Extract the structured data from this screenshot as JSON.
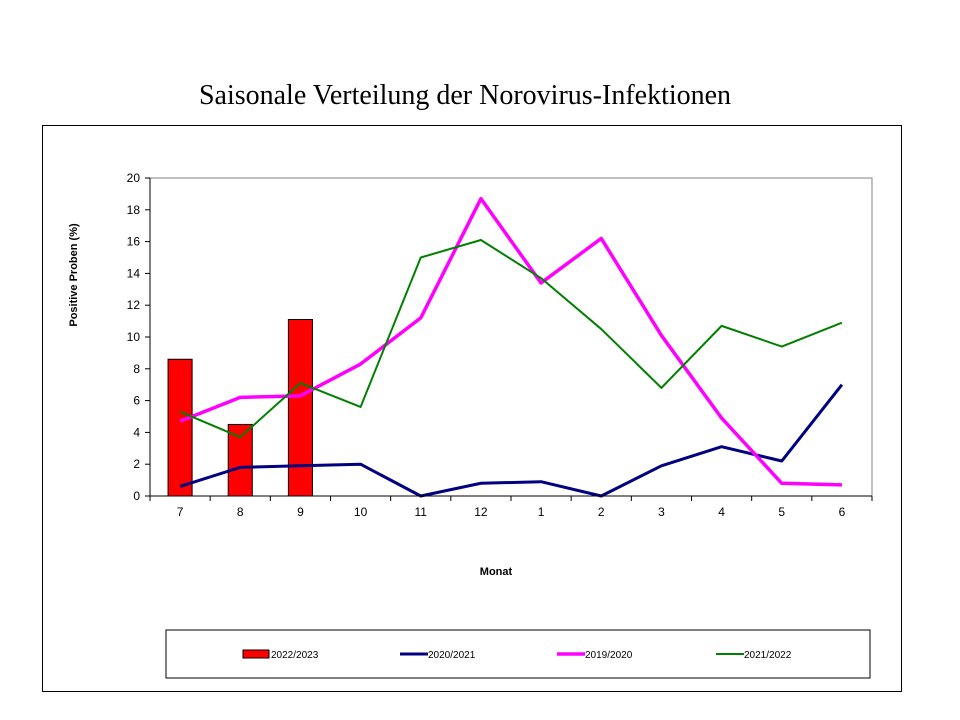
{
  "chart_data": {
    "type": "bar+line",
    "title": "Saisonale Verteilung der Norovirus-Infektionen",
    "xlabel": "Monat",
    "ylabel": "Positive Proben (%)",
    "ylim": [
      0,
      20
    ],
    "yticks": [
      "0",
      "2",
      "4",
      "6",
      "8",
      "10",
      "12",
      "14",
      "16",
      "18",
      "20"
    ],
    "categories": [
      "7",
      "8",
      "9",
      "10",
      "11",
      "12",
      "1",
      "2",
      "3",
      "4",
      "5",
      "6"
    ],
    "grid": false,
    "legend_position": "bottom",
    "series": [
      {
        "name": "2022/2023",
        "type": "bar",
        "color": "#ff0000",
        "values": [
          8.6,
          4.5,
          11.1,
          null,
          null,
          null,
          null,
          null,
          null,
          null,
          null,
          null
        ]
      },
      {
        "name": "2020/2021",
        "type": "line",
        "color": "#000080",
        "values": [
          0.6,
          1.8,
          1.9,
          2.0,
          0.0,
          0.8,
          0.9,
          0.0,
          1.9,
          3.1,
          2.2,
          7.0
        ]
      },
      {
        "name": "2019/2020",
        "type": "line",
        "color": "#ff00ff",
        "values": [
          4.7,
          6.2,
          6.3,
          8.3,
          11.2,
          18.7,
          13.4,
          16.2,
          10.1,
          4.9,
          0.8,
          0.7
        ]
      },
      {
        "name": "2021/2022",
        "type": "line",
        "color": "#008000",
        "values": [
          5.3,
          3.7,
          7.1,
          5.6,
          15.0,
          16.1,
          13.7,
          10.5,
          6.8,
          10.7,
          9.4,
          10.9
        ]
      }
    ]
  }
}
